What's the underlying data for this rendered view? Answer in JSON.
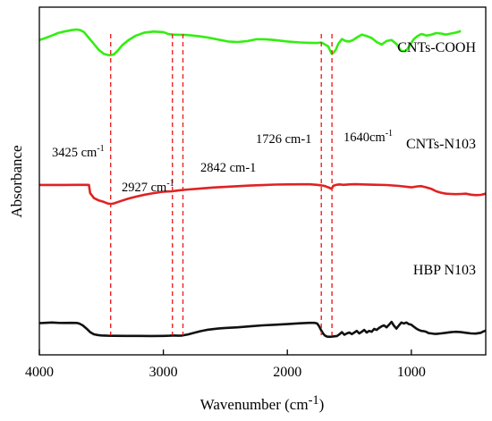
{
  "chart_data": {
    "type": "line",
    "xlabel": "Wavenumber (cm",
    "xlabel_sup": "-1",
    "xlabel_tail": ")",
    "ylabel": "Absorbance",
    "xlim": [
      4000,
      400
    ],
    "x_reversed": true,
    "ylim": [
      0,
      100
    ],
    "y_ticks_shown": false,
    "grid": false,
    "xticks": [
      4000,
      3000,
      2000,
      1000
    ],
    "xtick_labels": [
      "4000",
      "3000",
      "2000",
      "1000"
    ],
    "series": [
      {
        "name": "CNTs-COOH",
        "color": "#33ee11",
        "x": [
          4000,
          3950,
          3900,
          3850,
          3800,
          3740,
          3700,
          3670,
          3640,
          3600,
          3560,
          3520,
          3480,
          3450,
          3425,
          3400,
          3370,
          3330,
          3280,
          3220,
          3150,
          3080,
          3000,
          2960,
          2920,
          2870,
          2820,
          2760,
          2700,
          2640,
          2560,
          2480,
          2400,
          2320,
          2250,
          2180,
          2100,
          2000,
          1900,
          1820,
          1760,
          1730,
          1710,
          1690,
          1670,
          1650,
          1640,
          1630,
          1610,
          1590,
          1560,
          1530,
          1500,
          1470,
          1440,
          1400,
          1360,
          1320,
          1280,
          1240,
          1200,
          1160,
          1120,
          1100,
          1080,
          1060,
          1040,
          1010,
          980,
          950,
          920,
          900,
          880,
          850,
          800,
          760,
          720,
          680,
          640,
          600
        ],
        "y": [
          84.0,
          86.0,
          88.5,
          91.0,
          92.5,
          94.0,
          94.6,
          94.0,
          92.0,
          86.0,
          80.0,
          74.0,
          70.0,
          69.0,
          68.7,
          69.5,
          73.0,
          79.0,
          84.0,
          88.5,
          91.5,
          92.5,
          92.0,
          90.0,
          89.5,
          89.3,
          89.2,
          88.5,
          87.6,
          86.5,
          84.5,
          82.5,
          82.0,
          83.0,
          84.8,
          84.8,
          84.0,
          82.5,
          81.5,
          81.2,
          81.0,
          81.5,
          80.5,
          79.0,
          77.5,
          72.0,
          70.0,
          71.0,
          74.0,
          80.0,
          85.0,
          83.0,
          82.5,
          84.0,
          86.5,
          89.5,
          88.0,
          86.0,
          82.0,
          79.5,
          83.0,
          84.0,
          80.0,
          76.0,
          73.0,
          72.8,
          73.5,
          79.0,
          85.0,
          88.0,
          90.0,
          89.5,
          88.5,
          89.0,
          91.0,
          90.5,
          89.5,
          90.5,
          91.5,
          93.0
        ]
      },
      {
        "name": "CNTs-N103",
        "color": "#e02222",
        "x": [
          4000,
          3900,
          3800,
          3700,
          3650,
          3620,
          3600,
          3590,
          3560,
          3520,
          3480,
          3450,
          3425,
          3400,
          3370,
          3330,
          3280,
          3220,
          3150,
          3080,
          3000,
          2960,
          2927,
          2900,
          2870,
          2842,
          2800,
          2700,
          2600,
          2500,
          2400,
          2300,
          2200,
          2100,
          2000,
          1900,
          1820,
          1760,
          1726,
          1700,
          1680,
          1660,
          1650,
          1640,
          1630,
          1610,
          1580,
          1550,
          1500,
          1450,
          1400,
          1300,
          1200,
          1100,
          1000,
          950,
          920,
          880,
          840,
          800,
          760,
          720,
          680,
          640,
          600,
          560,
          520,
          480,
          440,
          400
        ],
        "y": [
          62.5,
          62.5,
          62.5,
          62.6,
          62.6,
          62.6,
          62.5,
          54.0,
          49.0,
          46.5,
          45.0,
          43.5,
          43.0,
          43.5,
          44.8,
          46.5,
          48.5,
          50.5,
          52.5,
          54.0,
          55.5,
          55.8,
          56.0,
          56.5,
          57.0,
          57.3,
          57.8,
          58.8,
          59.8,
          60.5,
          61.2,
          61.8,
          62.3,
          62.8,
          63.0,
          63.1,
          63.1,
          62.6,
          62.0,
          61.5,
          60.5,
          59.5,
          58.7,
          59.0,
          61.5,
          62.5,
          63.0,
          62.6,
          63.0,
          63.2,
          63.0,
          62.7,
          62.4,
          61.5,
          60.0,
          61.0,
          61.3,
          60.0,
          58.5,
          56.0,
          54.5,
          53.5,
          53.2,
          53.0,
          53.2,
          53.5,
          52.5,
          52.0,
          52.3,
          53.5
        ]
      },
      {
        "name": "HBP N103",
        "color": "#111111",
        "x": [
          4000,
          3950,
          3900,
          3850,
          3800,
          3740,
          3700,
          3680,
          3650,
          3620,
          3590,
          3560,
          3530,
          3500,
          3450,
          3400,
          3300,
          3200,
          3100,
          3000,
          2950,
          2920,
          2880,
          2850,
          2800,
          2750,
          2700,
          2650,
          2600,
          2550,
          2500,
          2450,
          2400,
          2300,
          2200,
          2100,
          2000,
          1900,
          1820,
          1780,
          1760,
          1745,
          1726,
          1710,
          1695,
          1680,
          1660,
          1640,
          1600,
          1580,
          1560,
          1540,
          1520,
          1500,
          1480,
          1460,
          1440,
          1420,
          1400,
          1380,
          1360,
          1340,
          1320,
          1300,
          1280,
          1260,
          1240,
          1220,
          1200,
          1180,
          1160,
          1140,
          1120,
          1100,
          1080,
          1060,
          1040,
          1020,
          1000,
          980,
          960,
          940,
          920,
          900,
          880,
          860,
          840,
          820,
          800,
          760,
          720,
          680,
          640,
          600,
          560,
          520,
          480,
          440,
          420,
          400
        ],
        "y": [
          21.5,
          22.0,
          22.5,
          22.0,
          21.8,
          22.0,
          21.8,
          21.0,
          18.0,
          13.0,
          7.5,
          4.2,
          3.0,
          2.4,
          2.0,
          1.8,
          1.6,
          1.6,
          1.5,
          1.6,
          1.9,
          2.3,
          2.0,
          2.2,
          4.0,
          6.5,
          9.0,
          11.0,
          12.2,
          13.3,
          14.0,
          14.5,
          15.0,
          16.5,
          18.0,
          19.0,
          20.0,
          21.2,
          22.0,
          22.0,
          21.0,
          17.0,
          10.0,
          5.0,
          2.0,
          0.6,
          0.3,
          0.5,
          1.5,
          4.0,
          7.5,
          3.5,
          5.5,
          7.0,
          4.5,
          7.0,
          9.5,
          5.5,
          8.0,
          11.0,
          7.0,
          9.5,
          8.0,
          12.5,
          11.0,
          14.0,
          16.5,
          18.0,
          15.0,
          19.0,
          23.5,
          17.5,
          13.0,
          18.0,
          22.5,
          21.0,
          22.5,
          20.0,
          19.0,
          16.0,
          13.0,
          11.0,
          9.5,
          9.0,
          8.0,
          6.0,
          5.5,
          5.0,
          4.7,
          5.5,
          6.5,
          7.5,
          8.0,
          7.5,
          6.5,
          5.5,
          5.3,
          6.5,
          8.5,
          10.0
        ]
      }
    ],
    "annotations": [
      {
        "x": 3425,
        "text": "3425 cm",
        "sup": "-1"
      },
      {
        "x": 2927,
        "text": "2927 cm",
        "sup": "-1"
      },
      {
        "x": 2842,
        "text": "2842 cm-1",
        "sup": ""
      },
      {
        "x": 1726,
        "text": "1726 cm-1",
        "sup": ""
      },
      {
        "x": 1640,
        "text": "1640cm",
        "sup": "-1"
      }
    ],
    "annotation_line_color": "#ee2222"
  }
}
